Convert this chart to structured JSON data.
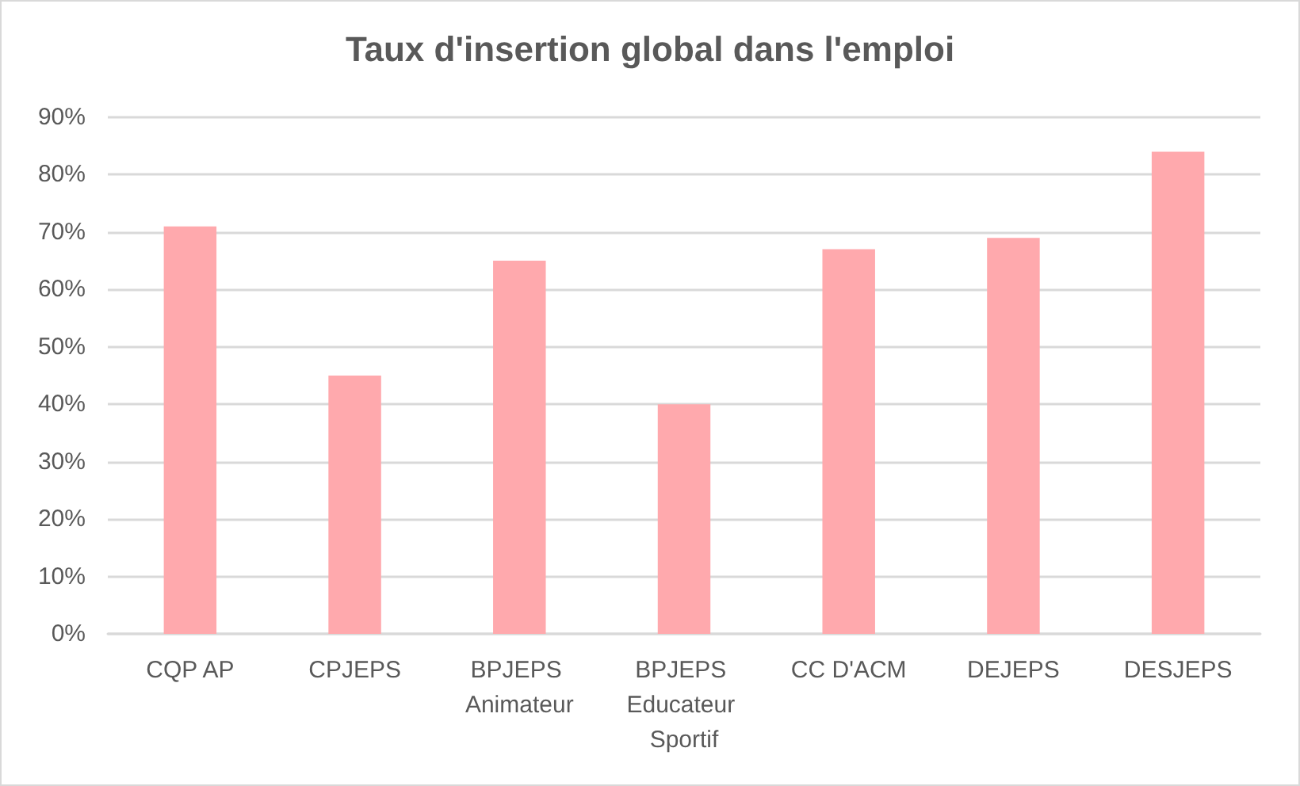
{
  "chart_data": {
    "type": "bar",
    "title": "Taux d'insertion global dans l'emploi",
    "categories": [
      "CQP AP",
      "CPJEPS",
      "BPJEPS Animateur",
      "BPJEPS Educateur Sportif",
      "CC D'ACM",
      "DEJEPS",
      "DESJEPS"
    ],
    "values": [
      71,
      45,
      65,
      40,
      67,
      69,
      84
    ],
    "color": "#ffa9ad",
    "ylim": [
      0,
      90
    ],
    "yticks": [
      {
        "value": 0,
        "label": "0%"
      },
      {
        "value": 10,
        "label": "10%"
      },
      {
        "value": 20,
        "label": "20%"
      },
      {
        "value": 30,
        "label": "30%"
      },
      {
        "value": 40,
        "label": "40%"
      },
      {
        "value": 50,
        "label": "50%"
      },
      {
        "value": 60,
        "label": "60%"
      },
      {
        "value": 70,
        "label": "70%"
      },
      {
        "value": 80,
        "label": "80%"
      },
      {
        "value": 90,
        "label": "90%"
      }
    ],
    "grid": "y"
  }
}
